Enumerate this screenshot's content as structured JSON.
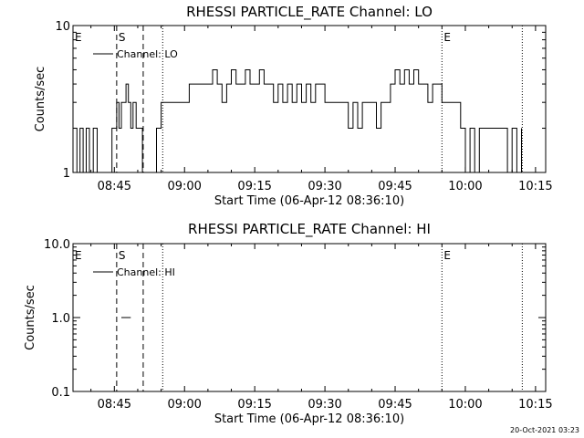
{
  "footer": {
    "timestamp": "20-Oct-2021 03:23"
  },
  "chart_data": [
    {
      "type": "line",
      "title": "RHESSI PARTICLE_RATE Channel: LO",
      "xlabel": "Start Time (06-Apr-12 08:36:10)",
      "ylabel": "Counts/sec",
      "yscale": "log",
      "ylim": [
        1,
        10
      ],
      "ytick_labels": [
        {
          "value": 1,
          "label": "1"
        },
        {
          "value": 10,
          "label": "10"
        }
      ],
      "xlim": [
        "08:36:10",
        "10:17:10"
      ],
      "xtick_labels": [
        "08:45",
        "09:00",
        "09:15",
        "09:30",
        "09:45",
        "10:00",
        "10:15"
      ],
      "legend": {
        "placement": "top-left",
        "entries": [
          "Channel: LO"
        ]
      },
      "series": [
        {
          "name": "Channel: LO",
          "x": [
            "08:36:10",
            "08:37:00",
            "08:37:40",
            "08:38:20",
            "08:39:00",
            "08:39:40",
            "08:40:30",
            "08:41:20",
            "08:42:00",
            "08:42:40",
            "08:43:30",
            "08:44:30",
            "08:45:00",
            "08:45:30",
            "08:46:00",
            "08:46:30",
            "08:47:00",
            "08:47:30",
            "08:48:00",
            "08:48:30",
            "08:49:00",
            "08:49:40",
            "08:50:20",
            "08:51:00",
            "08:52:00",
            "08:53:10",
            "08:54:00",
            "08:55:00",
            "08:57:00",
            "08:59:00",
            "09:01:00",
            "09:03:00",
            "09:05:00",
            "09:06:00",
            "09:07:00",
            "09:08:00",
            "09:09:00",
            "09:10:00",
            "09:11:00",
            "09:12:00",
            "09:13:00",
            "09:14:00",
            "09:15:00",
            "09:16:00",
            "09:17:00",
            "09:18:00",
            "09:19:00",
            "09:20:00",
            "09:21:00",
            "09:22:00",
            "09:23:00",
            "09:24:00",
            "09:25:00",
            "09:26:00",
            "09:27:00",
            "09:28:00",
            "09:29:00",
            "09:30:00",
            "09:32:00",
            "09:34:00",
            "09:35:00",
            "09:36:00",
            "09:37:00",
            "09:38:00",
            "09:39:00",
            "09:40:00",
            "09:41:00",
            "09:42:00",
            "09:43:00",
            "09:44:00",
            "09:45:00",
            "09:46:00",
            "09:47:00",
            "09:48:00",
            "09:49:00",
            "09:50:00",
            "09:51:00",
            "09:52:00",
            "09:53:00",
            "09:54:00",
            "09:55:00",
            "09:56:00",
            "09:57:00",
            "09:58:00",
            "09:59:00",
            "10:00:00",
            "10:01:00",
            "10:02:00",
            "10:03:00",
            "10:04:00",
            "10:05:00",
            "10:06:00",
            "10:07:00",
            "10:08:00",
            "10:09:00",
            "10:10:00",
            "10:11:00",
            "10:11:30",
            "10:12:00"
          ],
          "values": [
            2,
            1,
            2,
            1,
            2,
            1,
            2,
            1,
            1,
            1,
            1,
            2,
            2,
            3,
            2,
            3,
            3,
            4,
            3,
            2,
            3,
            2,
            2,
            1,
            1,
            1,
            2,
            3,
            3,
            3,
            4,
            4,
            4,
            5,
            4,
            3,
            4,
            5,
            4,
            4,
            5,
            4,
            4,
            5,
            4,
            4,
            3,
            4,
            3,
            4,
            3,
            4,
            3,
            4,
            3,
            4,
            4,
            3,
            3,
            3,
            2,
            3,
            2,
            3,
            3,
            3,
            2,
            3,
            3,
            4,
            5,
            4,
            5,
            4,
            5,
            4,
            4,
            3,
            4,
            4,
            3,
            3,
            3,
            3,
            2,
            1,
            2,
            1,
            2,
            2,
            2,
            2,
            2,
            2,
            1,
            2,
            1,
            1,
            2
          ]
        }
      ],
      "annotations": [
        {
          "label": "E",
          "x": "08:36:10",
          "line": "none"
        },
        {
          "label": "S",
          "x": "08:45:30",
          "line": "dashed"
        },
        {
          "label": "",
          "x": "08:51:10",
          "line": "dashed"
        },
        {
          "label": "",
          "x": "08:55:20",
          "line": "dotted"
        },
        {
          "label": "E",
          "x": "09:55:00",
          "line": "dotted"
        },
        {
          "label": "",
          "x": "10:12:10",
          "line": "dotted"
        }
      ]
    },
    {
      "type": "line",
      "title": "RHESSI PARTICLE_RATE Channel: HI",
      "xlabel": "Start Time (06-Apr-12 08:36:10)",
      "ylabel": "Counts/sec",
      "yscale": "log",
      "ylim": [
        0.1,
        10
      ],
      "ytick_labels": [
        {
          "value": 0.1,
          "label": "0.1"
        },
        {
          "value": 1,
          "label": "1.0"
        },
        {
          "value": 10,
          "label": "10.0"
        }
      ],
      "xlim": [
        "08:36:10",
        "10:17:10"
      ],
      "xtick_labels": [
        "08:45",
        "09:00",
        "09:15",
        "09:30",
        "09:45",
        "10:00",
        "10:15"
      ],
      "legend": {
        "placement": "top-left",
        "entries": [
          "Channel: HI"
        ]
      },
      "series": [
        {
          "name": "Channel: HI",
          "x": [
            "08:46:30",
            "08:48:30"
          ],
          "values": [
            1,
            1
          ]
        }
      ],
      "annotations": [
        {
          "label": "E",
          "x": "08:36:10",
          "line": "none"
        },
        {
          "label": "S",
          "x": "08:45:30",
          "line": "dashed"
        },
        {
          "label": "",
          "x": "08:51:10",
          "line": "dashed"
        },
        {
          "label": "",
          "x": "08:55:20",
          "line": "dotted"
        },
        {
          "label": "E",
          "x": "09:55:00",
          "line": "dotted"
        },
        {
          "label": "",
          "x": "10:12:10",
          "line": "dotted"
        }
      ]
    }
  ]
}
